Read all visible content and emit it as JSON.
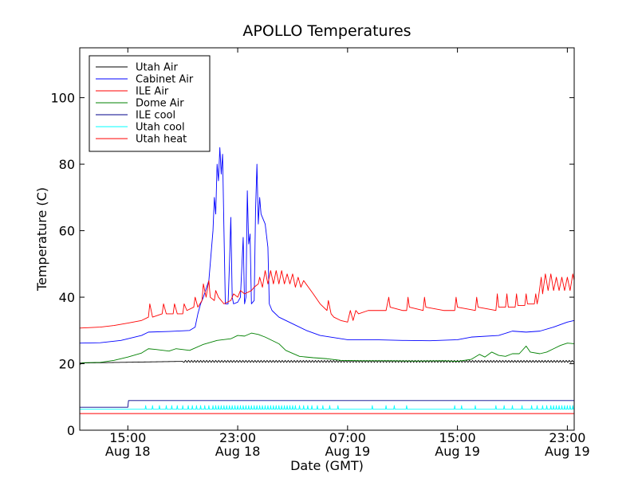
{
  "chart_data": {
    "type": "line",
    "title": "APOLLO Temperatures",
    "xlabel": "Date (GMT)",
    "ylabel": "Temperature (C)",
    "xlim_hours": [
      11.5,
      47.5
    ],
    "ylim": [
      0,
      115
    ],
    "x_ticks": [
      {
        "hour": 15,
        "time": "15:00",
        "date": "Aug 18"
      },
      {
        "hour": 23,
        "time": "23:00",
        "date": "Aug 18"
      },
      {
        "hour": 31,
        "time": "07:00",
        "date": "Aug 19"
      },
      {
        "hour": 39,
        "time": "15:00",
        "date": "Aug 19"
      },
      {
        "hour": 47,
        "time": "23:00",
        "date": "Aug 19"
      }
    ],
    "y_ticks": [
      0,
      20,
      40,
      60,
      80,
      100
    ],
    "legend_position": "top-left",
    "series": [
      {
        "name": "Utah Air",
        "color": "#000000",
        "style": "oscillating",
        "amp": 0.3,
        "period": 0.22,
        "points": [
          [
            11.5,
            20.2
          ],
          [
            19,
            20.7
          ],
          [
            47.5,
            20.7
          ]
        ]
      },
      {
        "name": "Cabinet Air",
        "color": "#0000ff",
        "style": "plain",
        "points": [
          [
            11.5,
            26.2
          ],
          [
            13,
            26.3
          ],
          [
            14.5,
            27.0
          ],
          [
            16,
            28.5
          ],
          [
            16.5,
            29.5
          ],
          [
            18,
            29.7
          ],
          [
            19.5,
            30.0
          ],
          [
            19.9,
            31.0
          ],
          [
            20.1,
            35
          ],
          [
            20.3,
            38
          ],
          [
            20.5,
            40
          ],
          [
            20.9,
            45
          ],
          [
            21.2,
            60
          ],
          [
            21.3,
            70
          ],
          [
            21.4,
            65
          ],
          [
            21.5,
            80
          ],
          [
            21.6,
            75
          ],
          [
            21.7,
            85
          ],
          [
            21.8,
            77
          ],
          [
            21.9,
            83
          ],
          [
            22.0,
            60
          ],
          [
            22.1,
            38
          ],
          [
            22.3,
            38
          ],
          [
            22.4,
            50
          ],
          [
            22.5,
            64
          ],
          [
            22.6,
            40
          ],
          [
            22.7,
            38
          ],
          [
            23.0,
            38.5
          ],
          [
            23.2,
            40
          ],
          [
            23.4,
            58
          ],
          [
            23.5,
            38
          ],
          [
            23.6,
            40
          ],
          [
            23.7,
            72
          ],
          [
            23.8,
            56
          ],
          [
            23.9,
            59
          ],
          [
            24.0,
            38
          ],
          [
            24.2,
            39
          ],
          [
            24.3,
            66
          ],
          [
            24.4,
            80
          ],
          [
            24.5,
            62
          ],
          [
            24.6,
            70
          ],
          [
            24.7,
            65
          ],
          [
            25.0,
            62
          ],
          [
            25.2,
            55
          ],
          [
            25.3,
            38
          ],
          [
            25.5,
            36
          ],
          [
            26,
            34
          ],
          [
            27,
            32
          ],
          [
            28,
            30
          ],
          [
            29,
            28.5
          ],
          [
            31,
            27.2
          ],
          [
            33,
            27.2
          ],
          [
            35,
            27.0
          ],
          [
            37,
            26.9
          ],
          [
            39,
            27.2
          ],
          [
            40,
            28.0
          ],
          [
            42,
            28.5
          ],
          [
            43,
            29.8
          ],
          [
            44,
            29.5
          ],
          [
            45,
            29.8
          ],
          [
            46,
            31.0
          ],
          [
            47,
            32.5
          ],
          [
            47.5,
            33.0
          ]
        ]
      },
      {
        "name": "ILE Air",
        "color": "#ff0000",
        "style": "plain",
        "points": [
          [
            11.5,
            30.7
          ],
          [
            13,
            31.0
          ],
          [
            14,
            31.5
          ],
          [
            15,
            32.2
          ],
          [
            16,
            33
          ],
          [
            16.5,
            34
          ],
          [
            16.6,
            38
          ],
          [
            16.8,
            34
          ],
          [
            17.5,
            35
          ],
          [
            17.6,
            38
          ],
          [
            17.8,
            35
          ],
          [
            18.3,
            35
          ],
          [
            18.4,
            38
          ],
          [
            18.6,
            35
          ],
          [
            19,
            35
          ],
          [
            19.1,
            38
          ],
          [
            19.3,
            36
          ],
          [
            19.8,
            37
          ],
          [
            19.9,
            40
          ],
          [
            20.1,
            37
          ],
          [
            20.4,
            39
          ],
          [
            20.5,
            44
          ],
          [
            20.7,
            40
          ],
          [
            20.9,
            45
          ],
          [
            21.0,
            40
          ],
          [
            21.3,
            39
          ],
          [
            21.4,
            42
          ],
          [
            21.6,
            40
          ],
          [
            22,
            38
          ],
          [
            22.5,
            39
          ],
          [
            22.7,
            41
          ],
          [
            23,
            40
          ],
          [
            23.2,
            42
          ],
          [
            23.5,
            41
          ],
          [
            24,
            42
          ],
          [
            24.2,
            43
          ],
          [
            24.5,
            44
          ],
          [
            24.6,
            46
          ],
          [
            24.8,
            43
          ],
          [
            25,
            48
          ],
          [
            25.2,
            44
          ],
          [
            25.4,
            48
          ],
          [
            25.6,
            44
          ],
          [
            25.8,
            48
          ],
          [
            26,
            44
          ],
          [
            26.2,
            48
          ],
          [
            26.4,
            44
          ],
          [
            26.6,
            47
          ],
          [
            26.8,
            44
          ],
          [
            27,
            47
          ],
          [
            27.2,
            43
          ],
          [
            27.4,
            46
          ],
          [
            27.6,
            43
          ],
          [
            27.8,
            45
          ],
          [
            28.5,
            41
          ],
          [
            29,
            38
          ],
          [
            29.5,
            36
          ],
          [
            29.6,
            39
          ],
          [
            29.8,
            35
          ],
          [
            30,
            34
          ],
          [
            30.5,
            33
          ],
          [
            31,
            32.5
          ],
          [
            31.2,
            36
          ],
          [
            31.4,
            33
          ],
          [
            31.6,
            36
          ],
          [
            31.8,
            35
          ],
          [
            32.5,
            36
          ],
          [
            33,
            36
          ],
          [
            33.8,
            36
          ],
          [
            34,
            40
          ],
          [
            34.1,
            37
          ],
          [
            35,
            36
          ],
          [
            35.3,
            36
          ],
          [
            35.4,
            40
          ],
          [
            35.5,
            37
          ],
          [
            36.5,
            36
          ],
          [
            36.6,
            40
          ],
          [
            36.7,
            37
          ],
          [
            38,
            36
          ],
          [
            38.8,
            36
          ],
          [
            38.9,
            40
          ],
          [
            39.0,
            37
          ],
          [
            40.3,
            36
          ],
          [
            40.4,
            40
          ],
          [
            40.5,
            37
          ],
          [
            41.8,
            36
          ],
          [
            41.9,
            41
          ],
          [
            42.0,
            37
          ],
          [
            42.5,
            37
          ],
          [
            42.6,
            41
          ],
          [
            42.7,
            37
          ],
          [
            43.2,
            37
          ],
          [
            43.3,
            41
          ],
          [
            43.4,
            37.5
          ],
          [
            43.9,
            37.5
          ],
          [
            44,
            41
          ],
          [
            44.1,
            38
          ],
          [
            44.6,
            38
          ],
          [
            44.7,
            41
          ],
          [
            44.8,
            38
          ],
          [
            44.9,
            40
          ],
          [
            45.1,
            46
          ],
          [
            45.2,
            41
          ],
          [
            45.4,
            47
          ],
          [
            45.6,
            42
          ],
          [
            45.8,
            47
          ],
          [
            46,
            42
          ],
          [
            46.2,
            46
          ],
          [
            46.4,
            42
          ],
          [
            46.6,
            46
          ],
          [
            46.8,
            42
          ],
          [
            47.0,
            46
          ],
          [
            47.2,
            42
          ],
          [
            47.4,
            47
          ],
          [
            47.5,
            45
          ]
        ]
      },
      {
        "name": "Dome Air",
        "color": "#008000",
        "style": "plain",
        "points": [
          [
            11.5,
            19.7
          ],
          [
            11.7,
            20.3
          ],
          [
            13,
            20.4
          ],
          [
            14,
            21
          ],
          [
            15,
            22
          ],
          [
            16,
            23.2
          ],
          [
            16.5,
            24.5
          ],
          [
            17,
            24.3
          ],
          [
            18,
            23.8
          ],
          [
            18.5,
            24.5
          ],
          [
            19.5,
            24.0
          ],
          [
            20.5,
            25.8
          ],
          [
            21.5,
            27
          ],
          [
            22.5,
            27.5
          ],
          [
            23,
            28.5
          ],
          [
            23.5,
            28.3
          ],
          [
            24,
            29.2
          ],
          [
            24.5,
            28.8
          ],
          [
            25,
            28
          ],
          [
            26,
            26
          ],
          [
            26.5,
            24
          ],
          [
            27.5,
            22.2
          ],
          [
            28.5,
            21.8
          ],
          [
            29.5,
            21.5
          ],
          [
            30.5,
            21
          ],
          [
            32,
            20.9
          ],
          [
            34,
            20.9
          ],
          [
            36,
            20.8
          ],
          [
            38,
            20.9
          ],
          [
            39,
            20.7
          ],
          [
            40,
            21.3
          ],
          [
            40.6,
            22.8
          ],
          [
            41,
            22
          ],
          [
            41.5,
            23.5
          ],
          [
            42,
            22.5
          ],
          [
            42.5,
            22.2
          ],
          [
            43,
            23
          ],
          [
            43.5,
            23
          ],
          [
            44,
            25.3
          ],
          [
            44.3,
            23.5
          ],
          [
            45,
            23.0
          ],
          [
            45.5,
            23.5
          ],
          [
            46,
            24.5
          ],
          [
            46.5,
            25.5
          ],
          [
            47,
            26.2
          ],
          [
            47.5,
            26.0
          ]
        ]
      },
      {
        "name": "ILE cool",
        "color": "#00008b",
        "style": "plain",
        "points": [
          [
            11.5,
            6.9
          ],
          [
            15,
            6.9
          ],
          [
            15.05,
            8.9
          ],
          [
            47.5,
            8.9
          ]
        ]
      },
      {
        "name": "Utah cool",
        "color": "#00ffff",
        "style": "spiky",
        "base": 6.3,
        "spike": 7.4,
        "spike_hours": [
          16.3,
          16.8,
          17.3,
          17.8,
          18.2,
          18.6,
          19.0,
          19.4,
          19.7,
          20.0,
          20.3,
          20.6,
          20.9,
          21.2,
          21.4,
          21.6,
          21.8,
          22.0,
          22.2,
          22.4,
          22.6,
          22.8,
          23.0,
          23.2,
          23.4,
          23.6,
          23.8,
          24.0,
          24.2,
          24.4,
          24.6,
          24.8,
          25.0,
          25.2,
          25.4,
          25.6,
          25.8,
          26.0,
          26.2,
          26.4,
          26.6,
          26.8,
          27.0,
          27.2,
          27.5,
          27.8,
          28.1,
          28.4,
          28.8,
          29.2,
          29.7,
          30.3,
          32.8,
          33.8,
          34.4,
          35.3,
          38.8,
          39.3,
          40.3,
          41.8,
          42.4,
          43.0,
          43.7,
          44.4,
          44.8,
          45.2,
          45.5,
          45.8,
          46.0,
          46.2,
          46.4,
          46.6,
          46.8,
          47.0,
          47.2,
          47.4
        ]
      },
      {
        "name": "Utah heat",
        "color": "#ff0000",
        "style": "plain",
        "points": [
          [
            11.5,
            5.0
          ],
          [
            47.5,
            5.0
          ]
        ]
      }
    ]
  }
}
